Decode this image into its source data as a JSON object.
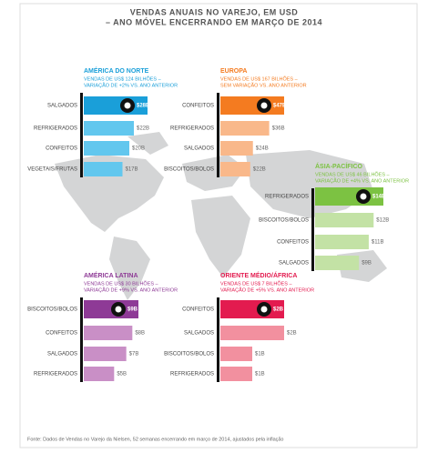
{
  "title": [
    "VENDAS ANUAIS NO VAREJO, EM USD",
    "– ANO MÓVEL ENCERRANDO EM MARÇO DE 2014"
  ],
  "source": "Fonte: Dados de Vendas no Varejo da Nielsen, 52 semanas encerrando em março de 2014, ajustados pela inflação",
  "chart_data": [
    {
      "type": "bar",
      "orientation": "horizontal",
      "title": "AMÉRICA DO NORTE",
      "subtitle": [
        "VENDAS DE US$ 124 BILHÕES –",
        "VARIAÇÃO DE +2% VS. ANO ANTERIOR"
      ],
      "categories": [
        "SALGADOS",
        "REFRIGERADOS",
        "CONFEITOS",
        "VEGETAIS/FRUTAS"
      ],
      "values": [
        28,
        22,
        20,
        17
      ],
      "value_labels": [
        "$28B",
        "$22B",
        "$20B",
        "$17B"
      ],
      "colors": [
        "#1a9fd9",
        "#62c7ee",
        "#62c7ee",
        "#62c7ee"
      ]
    },
    {
      "type": "bar",
      "orientation": "horizontal",
      "title": "EUROPA",
      "subtitle": [
        "VENDAS DE US$ 167 BILHÕES –",
        "SEM VARIAÇÃO VS. ANO ANTERIOR"
      ],
      "categories": [
        "CONFEITOS",
        "REFRIGERADOS",
        "SALGADOS",
        "BISCOITOS/BOLOS"
      ],
      "values": [
        47,
        36,
        24,
        22
      ],
      "value_labels": [
        "$47B",
        "$36B",
        "$24B",
        "$22B"
      ],
      "colors": [
        "#f47b20",
        "#f9b88a",
        "#f9b88a",
        "#f9b88a"
      ]
    },
    {
      "type": "bar",
      "orientation": "horizontal",
      "title": "ÁSIA-PACÍFICO",
      "subtitle": [
        "VENDAS DE US$ 46 BILHÕES –",
        "VARIAÇÃO DE +4% VS. ANO ANTERIOR"
      ],
      "categories": [
        "REFRIGERADOS",
        "BISCOITOS/BOLOS",
        "CONFEITOS",
        "SALGADOS"
      ],
      "values": [
        14,
        12,
        11,
        9
      ],
      "value_labels": [
        "$14B",
        "$12B",
        "$11B",
        "$9B"
      ],
      "colors": [
        "#7cc242",
        "#c3e2a5",
        "#c3e2a5",
        "#c3e2a5"
      ]
    },
    {
      "type": "bar",
      "orientation": "horizontal",
      "title": "AMÉRICA LATINA",
      "subtitle": [
        "VENDAS DE US$ 30 BILHÕES –",
        "VARIAÇÃO DE +9% VS. ANO ANTERIOR"
      ],
      "categories": [
        "BISCOITOS/BOLOS",
        "CONFEITOS",
        "SALGADOS",
        "REFRIGERADOS"
      ],
      "values": [
        9,
        8,
        7,
        5
      ],
      "value_labels": [
        "$9B",
        "$8B",
        "$7B",
        "$5B"
      ],
      "colors": [
        "#8e3a96",
        "#c98fc6",
        "#c98fc6",
        "#c98fc6"
      ]
    },
    {
      "type": "bar",
      "orientation": "horizontal",
      "title": "ORIENTE MÉDIO/ÁFRICA",
      "subtitle": [
        "VENDAS DE US$ 7 BILHÕES –",
        "VARIAÇÃO DE +5% VS. ANO ANTERIOR"
      ],
      "categories": [
        "CONFEITOS",
        "SALGADOS",
        "BISCOITOS/BOLOS",
        "REFRIGERADOS"
      ],
      "values": [
        2,
        2,
        1,
        1
      ],
      "value_labels": [
        "$2B",
        "$2B",
        "$1B",
        "$1B"
      ],
      "colors": [
        "#e31b4f",
        "#f2909f",
        "#f2909f",
        "#f2909f"
      ]
    }
  ]
}
